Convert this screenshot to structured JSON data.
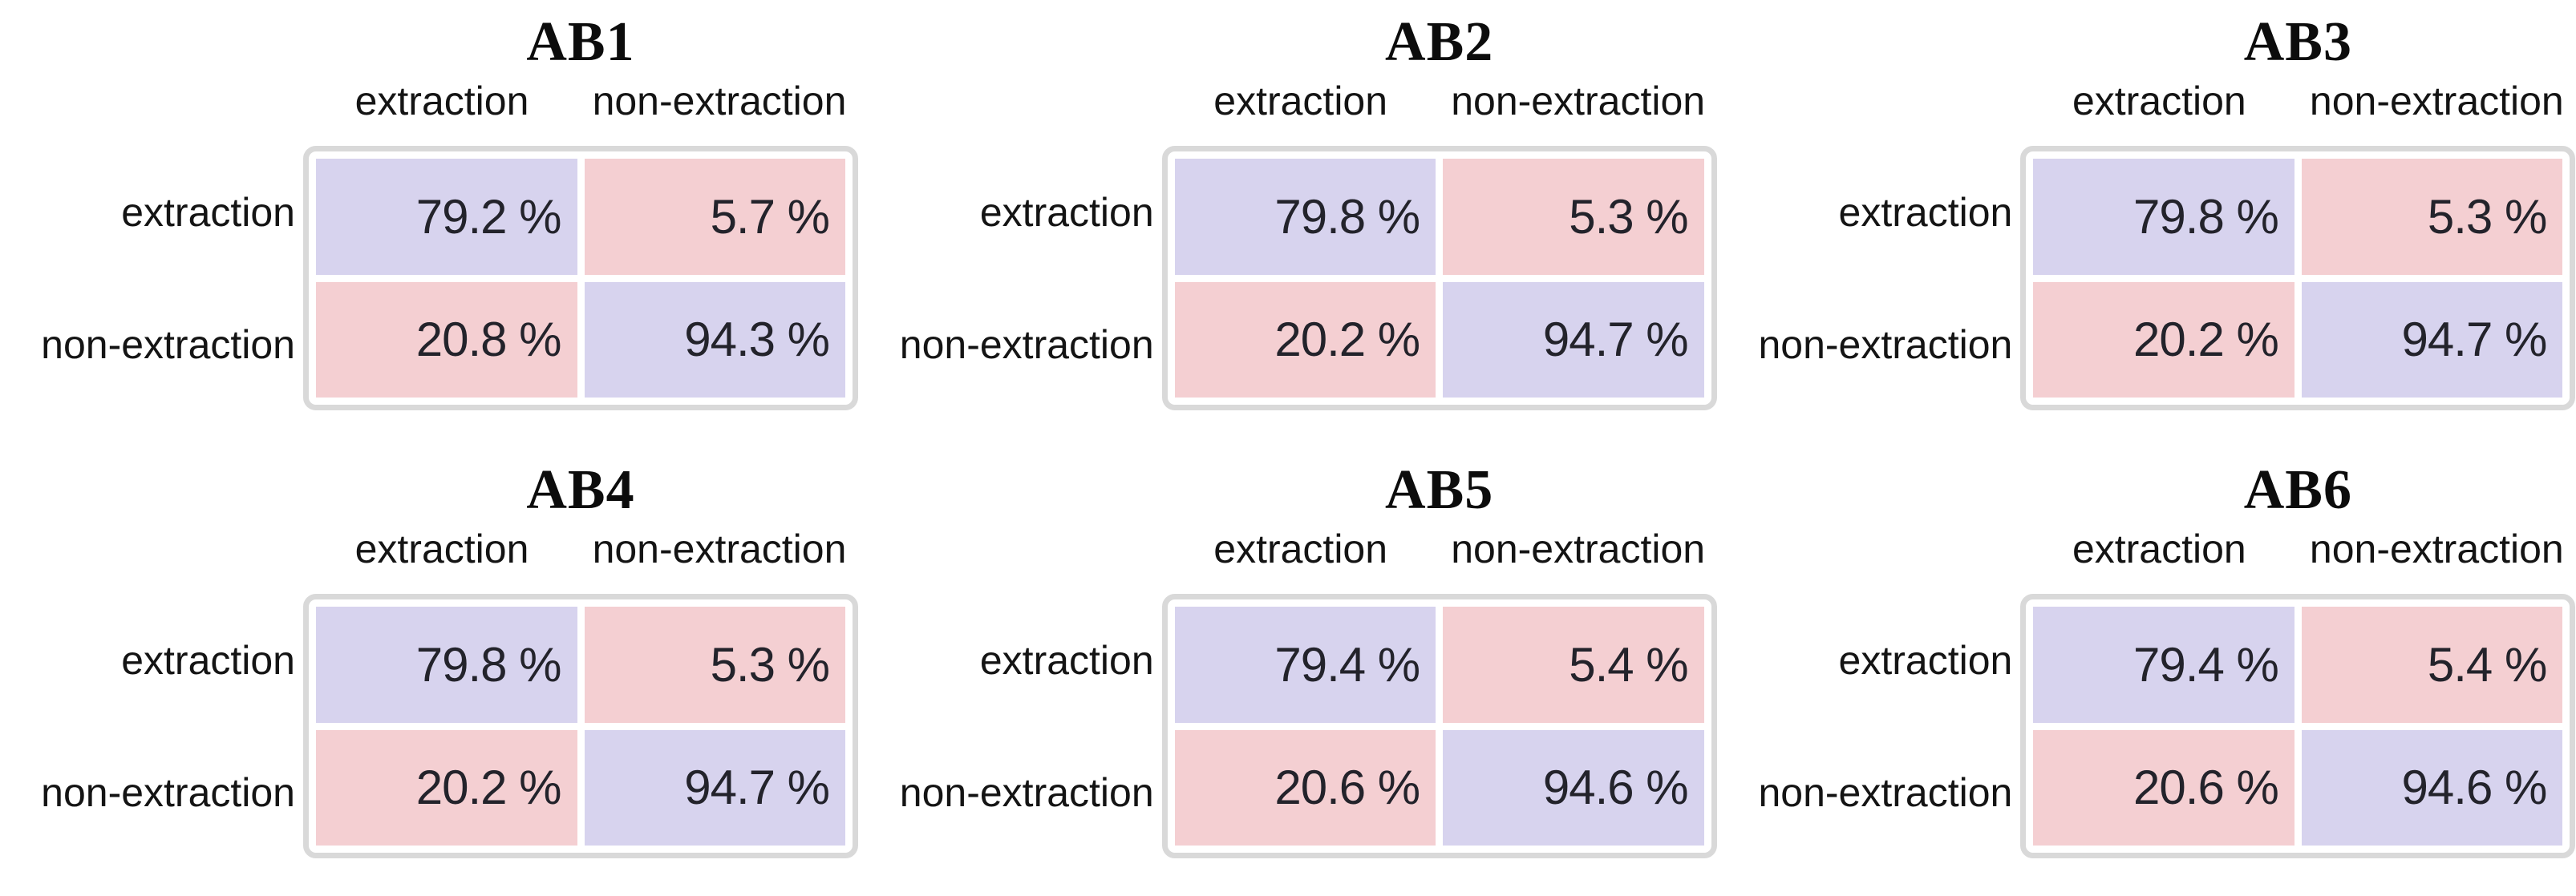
{
  "figure": {
    "description": "Six 2x2 confusion matrices (extraction vs non-extraction) for models AB1-AB6",
    "colors": {
      "match_cell": "#d7d3ee",
      "mismatch_cell": "#f4cfd2",
      "box_border": "#d9d9d9",
      "text": "#1d1d22"
    },
    "value_suffix": " %"
  },
  "chart_data": [
    {
      "type": "heatmap",
      "title": "AB1",
      "x_categories": [
        "extraction",
        "non-extraction"
      ],
      "y_categories": [
        "extraction",
        "non-extraction"
      ],
      "values_percent": [
        [
          79.2,
          5.7
        ],
        [
          20.8,
          94.3
        ]
      ],
      "values_display": [
        [
          "79.2 %",
          "5.7 %"
        ],
        [
          "20.8 %",
          "94.3 %"
        ]
      ]
    },
    {
      "type": "heatmap",
      "title": "AB2",
      "x_categories": [
        "extraction",
        "non-extraction"
      ],
      "y_categories": [
        "extraction",
        "non-extraction"
      ],
      "values_percent": [
        [
          79.8,
          5.3
        ],
        [
          20.2,
          94.7
        ]
      ],
      "values_display": [
        [
          "79.8 %",
          "5.3 %"
        ],
        [
          "20.2 %",
          "94.7 %"
        ]
      ]
    },
    {
      "type": "heatmap",
      "title": "AB3",
      "x_categories": [
        "extraction",
        "non-extraction"
      ],
      "y_categories": [
        "extraction",
        "non-extraction"
      ],
      "values_percent": [
        [
          79.8,
          5.3
        ],
        [
          20.2,
          94.7
        ]
      ],
      "values_display": [
        [
          "79.8 %",
          "5.3 %"
        ],
        [
          "20.2 %",
          "94.7 %"
        ]
      ]
    },
    {
      "type": "heatmap",
      "title": "AB4",
      "x_categories": [
        "extraction",
        "non-extraction"
      ],
      "y_categories": [
        "extraction",
        "non-extraction"
      ],
      "values_percent": [
        [
          79.8,
          5.3
        ],
        [
          20.2,
          94.7
        ]
      ],
      "values_display": [
        [
          "79.8 %",
          "5.3 %"
        ],
        [
          "20.2 %",
          "94.7 %"
        ]
      ]
    },
    {
      "type": "heatmap",
      "title": "AB5",
      "x_categories": [
        "extraction",
        "non-extraction"
      ],
      "y_categories": [
        "extraction",
        "non-extraction"
      ],
      "values_percent": [
        [
          79.4,
          5.4
        ],
        [
          20.6,
          94.6
        ]
      ],
      "values_display": [
        [
          "79.4 %",
          "5.4 %"
        ],
        [
          "20.6 %",
          "94.6 %"
        ]
      ]
    },
    {
      "type": "heatmap",
      "title": "AB6",
      "x_categories": [
        "extraction",
        "non-extraction"
      ],
      "y_categories": [
        "extraction",
        "non-extraction"
      ],
      "values_percent": [
        [
          79.4,
          5.4
        ],
        [
          20.6,
          94.6
        ]
      ],
      "values_display": [
        [
          "79.4 %",
          "5.4 %"
        ],
        [
          "20.6 %",
          "94.6 %"
        ]
      ]
    }
  ]
}
